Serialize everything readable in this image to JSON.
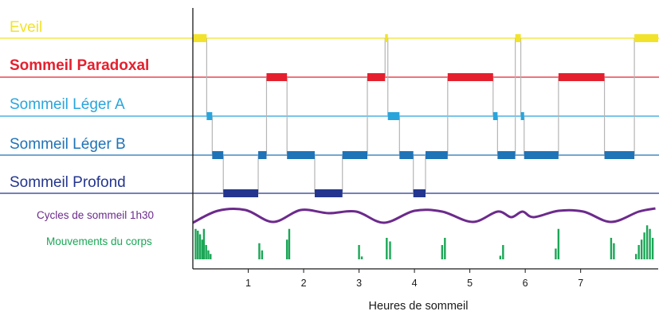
{
  "chart_data": {
    "type": "hypnogram",
    "xlabel": "Heures de sommeil",
    "xlim": [
      0,
      8.4
    ],
    "x_ticks": [
      1,
      2,
      3,
      4,
      5,
      6,
      7
    ],
    "stages": [
      {
        "id": "eveil",
        "label": "Eveil",
        "color": "#f2e32a",
        "bold": false
      },
      {
        "id": "paradoxal",
        "label": "Sommeil Paradoxal",
        "color": "#e5202e",
        "bold": true
      },
      {
        "id": "leger_a",
        "label": "Sommeil Léger A",
        "color": "#29a5dc",
        "bold": false
      },
      {
        "id": "leger_b",
        "label": "Sommeil Léger B",
        "color": "#1f73b7",
        "bold": false
      },
      {
        "id": "profond",
        "label": "Sommeil Profond",
        "color": "#23358e",
        "bold": false
      }
    ],
    "segments": [
      {
        "stage": "eveil",
        "start": 0.0,
        "end": 0.25
      },
      {
        "stage": "leger_a",
        "start": 0.25,
        "end": 0.35
      },
      {
        "stage": "leger_b",
        "start": 0.35,
        "end": 0.55
      },
      {
        "stage": "profond",
        "start": 0.55,
        "end": 1.18
      },
      {
        "stage": "leger_b",
        "start": 1.18,
        "end": 1.33
      },
      {
        "stage": "paradoxal",
        "start": 1.33,
        "end": 1.7
      },
      {
        "stage": "leger_b",
        "start": 1.7,
        "end": 2.2
      },
      {
        "stage": "profond",
        "start": 2.2,
        "end": 2.7
      },
      {
        "stage": "leger_b",
        "start": 2.7,
        "end": 3.15
      },
      {
        "stage": "paradoxal",
        "start": 3.15,
        "end": 3.47
      },
      {
        "stage": "eveil",
        "start": 3.47,
        "end": 3.52
      },
      {
        "stage": "leger_a",
        "start": 3.52,
        "end": 3.73
      },
      {
        "stage": "leger_b",
        "start": 3.73,
        "end": 3.98
      },
      {
        "stage": "profond",
        "start": 3.98,
        "end": 4.2
      },
      {
        "stage": "leger_b",
        "start": 4.2,
        "end": 4.6
      },
      {
        "stage": "paradoxal",
        "start": 4.6,
        "end": 5.42
      },
      {
        "stage": "leger_a",
        "start": 5.42,
        "end": 5.5
      },
      {
        "stage": "leger_b",
        "start": 5.5,
        "end": 5.82
      },
      {
        "stage": "eveil",
        "start": 5.82,
        "end": 5.92
      },
      {
        "stage": "leger_a",
        "start": 5.92,
        "end": 5.98
      },
      {
        "stage": "leger_b",
        "start": 5.98,
        "end": 6.6
      },
      {
        "stage": "paradoxal",
        "start": 6.6,
        "end": 7.43
      },
      {
        "stage": "leger_b",
        "start": 7.43,
        "end": 7.97
      },
      {
        "stage": "eveil",
        "start": 7.97,
        "end": 8.4
      }
    ],
    "cycles": {
      "label": "Cycles de sommeil 1h30",
      "color": "#6c2a8c",
      "points": [
        [
          0,
          0.9
        ],
        [
          0.45,
          0.15
        ],
        [
          0.95,
          0.1
        ],
        [
          1.45,
          0.85
        ],
        [
          1.95,
          0.1
        ],
        [
          2.45,
          0.3
        ],
        [
          2.95,
          0.2
        ],
        [
          3.45,
          0.9
        ],
        [
          4.0,
          0.15
        ],
        [
          4.5,
          0.2
        ],
        [
          5.05,
          0.85
        ],
        [
          5.5,
          0.2
        ],
        [
          5.75,
          0.55
        ],
        [
          5.95,
          0.2
        ],
        [
          6.15,
          0.55
        ],
        [
          6.6,
          0.15
        ],
        [
          7.05,
          0.2
        ],
        [
          7.55,
          0.85
        ],
        [
          8.05,
          0.2
        ],
        [
          8.35,
          0.0
        ]
      ]
    },
    "movements": {
      "label": "Mouvements du corps",
      "color": "#1ba656",
      "bars": [
        [
          0.05,
          0.85
        ],
        [
          0.09,
          0.8
        ],
        [
          0.13,
          0.7
        ],
        [
          0.17,
          0.55
        ],
        [
          0.2,
          0.85
        ],
        [
          0.24,
          0.4
        ],
        [
          0.28,
          0.25
        ],
        [
          0.32,
          0.15
        ],
        [
          1.2,
          0.45
        ],
        [
          1.25,
          0.25
        ],
        [
          1.7,
          0.55
        ],
        [
          1.74,
          0.85
        ],
        [
          3.0,
          0.4
        ],
        [
          3.05,
          0.08
        ],
        [
          3.5,
          0.6
        ],
        [
          3.56,
          0.5
        ],
        [
          4.5,
          0.4
        ],
        [
          4.55,
          0.6
        ],
        [
          5.55,
          0.1
        ],
        [
          5.6,
          0.4
        ],
        [
          6.55,
          0.3
        ],
        [
          6.6,
          0.85
        ],
        [
          7.55,
          0.6
        ],
        [
          7.6,
          0.45
        ],
        [
          8.0,
          0.15
        ],
        [
          8.05,
          0.4
        ],
        [
          8.1,
          0.55
        ],
        [
          8.15,
          0.75
        ],
        [
          8.2,
          0.95
        ],
        [
          8.25,
          0.85
        ],
        [
          8.3,
          0.6
        ]
      ]
    }
  }
}
